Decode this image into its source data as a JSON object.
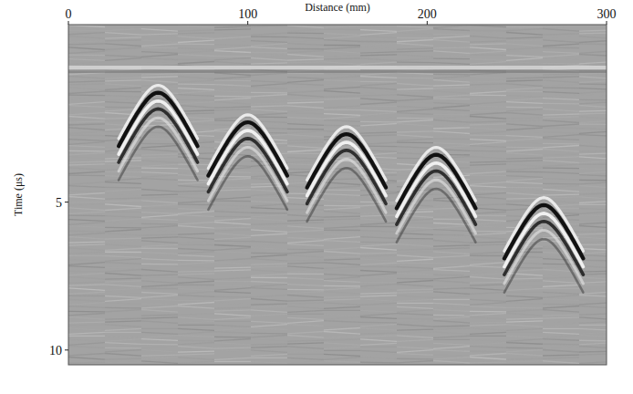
{
  "chart_data": {
    "type": "scatter",
    "x_label": "Distance (mm)",
    "y_label": "Time (μs)",
    "x": [
      50,
      100,
      155,
      205,
      265
    ],
    "values": [
      1.3,
      2.3,
      2.7,
      3.4,
      5.1
    ],
    "marker": "hyperbola",
    "color": "#111111",
    "xlim": [
      0,
      300
    ],
    "xticks": [
      0,
      100,
      200,
      300
    ],
    "ylim": [
      -1,
      10.5
    ],
    "yticks": [
      5,
      10
    ],
    "grid": false
  }
}
